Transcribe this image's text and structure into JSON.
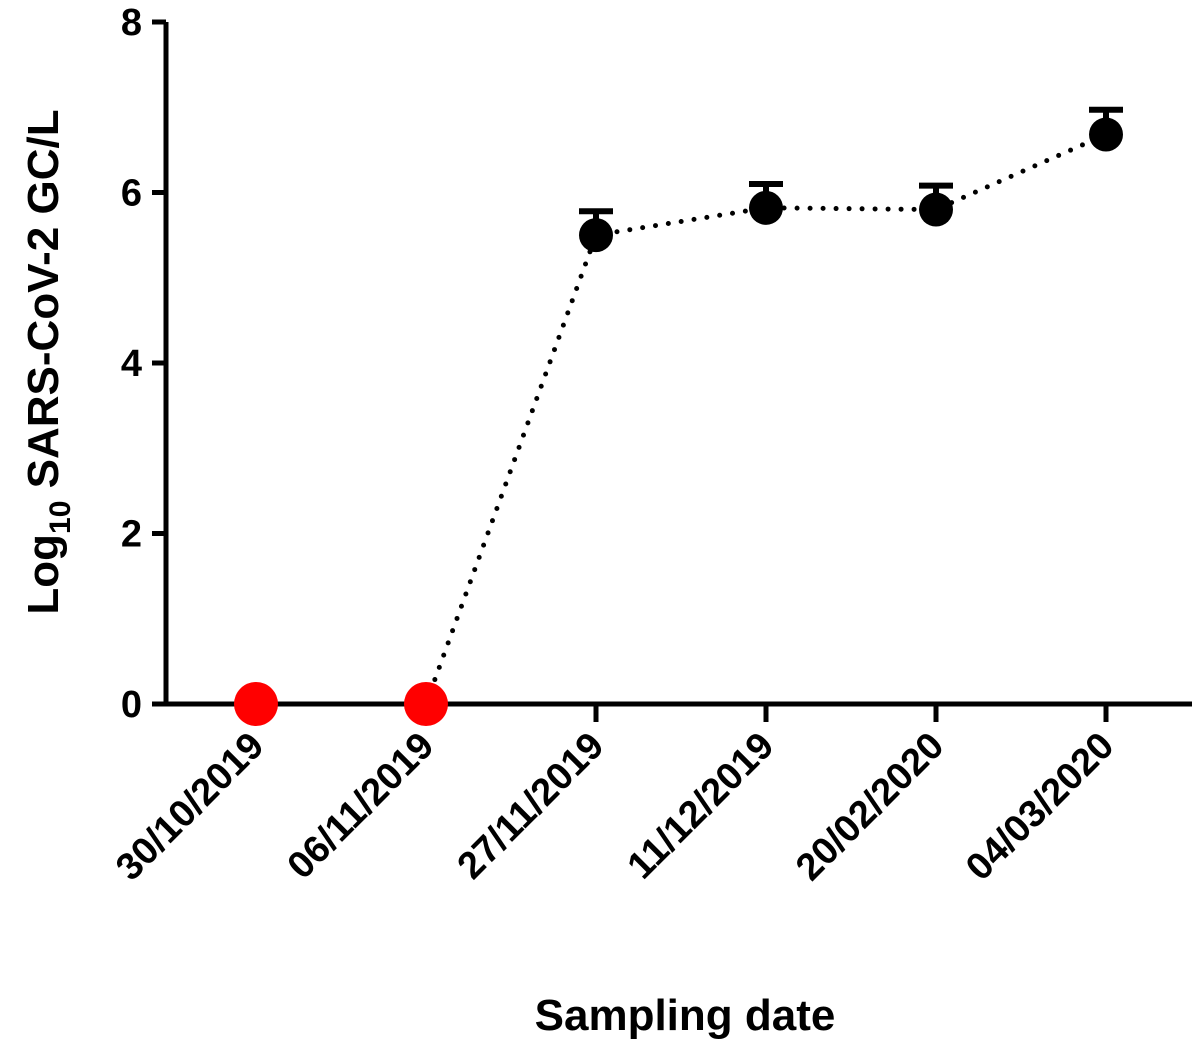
{
  "chart_data": {
    "type": "scatter",
    "title": "",
    "xlabel": "Sampling date",
    "ylabel": {
      "prefix": "Log",
      "subscript": "10",
      "suffix": " SARS-CoV-2 GC/L"
    },
    "ylim": [
      0,
      8
    ],
    "yticks": [
      "0",
      "2",
      "4",
      "6",
      "8"
    ],
    "categories": [
      "30/10/2019",
      "06/11/2019",
      "27/11/2019",
      "11/12/2019",
      "20/02/2020",
      "04/03/2020"
    ],
    "values": [
      0,
      0,
      5.5,
      5.82,
      5.8,
      6.68
    ],
    "error_upper": [
      null,
      null,
      5.78,
      6.1,
      6.08,
      6.97
    ],
    "point_colors": [
      "#ff0000",
      "#ff0000",
      "#000000",
      "#000000",
      "#000000",
      "#000000"
    ],
    "line_style": "dotted",
    "colors": {
      "axis": "#000000",
      "negative": "#ff0000",
      "positive": "#000000"
    }
  }
}
